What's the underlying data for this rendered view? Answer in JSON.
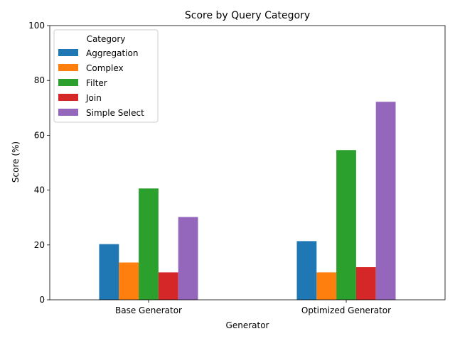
{
  "chart_data": {
    "type": "bar",
    "title": "Score by Query Category",
    "xlabel": "Generator",
    "ylabel": "Score (%)",
    "ylim": [
      0,
      100
    ],
    "yticks": [
      0,
      20,
      40,
      60,
      80,
      100
    ],
    "categories": [
      "Base Generator",
      "Optimized Generator"
    ],
    "grid": false,
    "legend": {
      "title": "Category",
      "placement": "top-left"
    },
    "series": [
      {
        "name": "Aggregation",
        "color": "#1f77b4",
        "values": [
          20.3,
          21.4
        ]
      },
      {
        "name": "Complex",
        "color": "#ff7f0e",
        "values": [
          13.6,
          10.0
        ]
      },
      {
        "name": "Filter",
        "color": "#2ca02c",
        "values": [
          40.6,
          54.6
        ]
      },
      {
        "name": "Join",
        "color": "#d62728",
        "values": [
          10.0,
          11.9
        ]
      },
      {
        "name": "Simple Select",
        "color": "#9467bd",
        "values": [
          30.2,
          72.2
        ]
      }
    ]
  }
}
